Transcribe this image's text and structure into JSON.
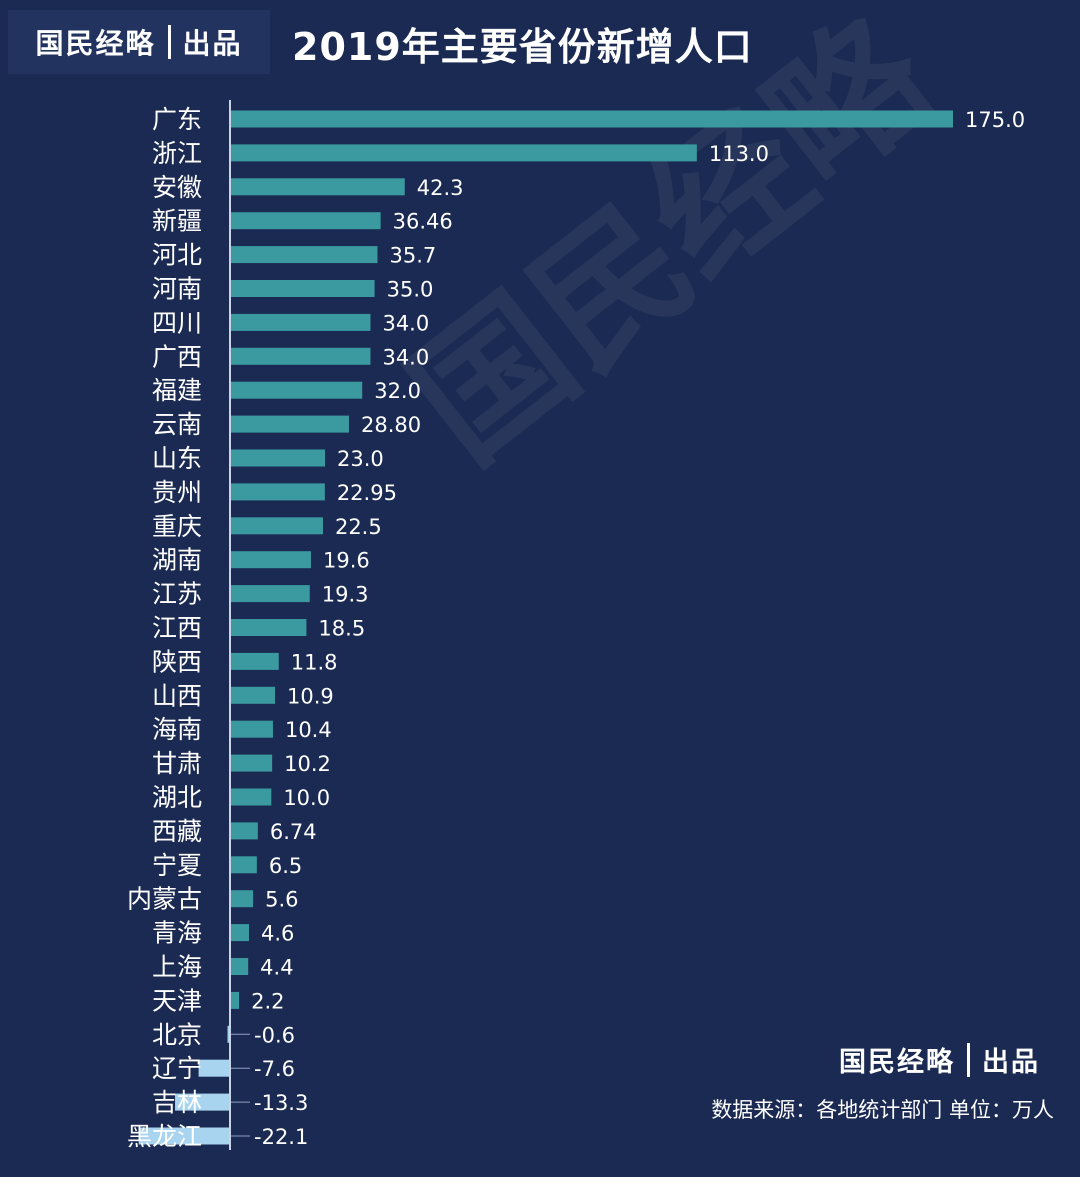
{
  "brand": {
    "name": "国民经略",
    "suffix": "出品"
  },
  "watermark": "国民经略",
  "footer": {
    "source": "数据来源：各地统计部门 单位：万人"
  },
  "colors": {
    "background": "#1b2a52",
    "positive_bar": "#3a9aa0",
    "negative_bar": "#a8d4f0",
    "text": "#ffffff"
  },
  "chart_data": {
    "type": "bar",
    "orientation": "horizontal",
    "title": "2019年主要省份新增人口",
    "xlabel": "",
    "ylabel": "",
    "grid": false,
    "xlim": [
      -22.1,
      175.0
    ],
    "categories": [
      "广东",
      "浙江",
      "安徽",
      "新疆",
      "河北",
      "河南",
      "四川",
      "广西",
      "福建",
      "云南",
      "山东",
      "贵州",
      "重庆",
      "湖南",
      "江苏",
      "江西",
      "陕西",
      "山西",
      "海南",
      "甘肃",
      "湖北",
      "西藏",
      "宁夏",
      "内蒙古",
      "青海",
      "上海",
      "天津",
      "北京",
      "辽宁",
      "吉林",
      "黑龙江"
    ],
    "values": [
      175.0,
      113.0,
      42.3,
      36.46,
      35.7,
      35.0,
      34.0,
      34.0,
      32.0,
      28.8,
      23.0,
      22.95,
      22.5,
      19.6,
      19.3,
      18.5,
      11.8,
      10.9,
      10.4,
      10.2,
      10.0,
      6.74,
      6.5,
      5.6,
      4.6,
      4.4,
      2.2,
      -0.6,
      -7.6,
      -13.3,
      -22.1
    ],
    "labels": [
      "175.0",
      "113.0",
      "42.3",
      "36.46",
      "35.7",
      "35.0",
      "34.0",
      "34.0",
      "32.0",
      "28.80",
      "23.0",
      "22.95",
      "22.5",
      "19.6",
      "19.3",
      "18.5",
      "11.8",
      "10.9",
      "10.4",
      "10.2",
      "10.0",
      "6.74",
      "6.5",
      "5.6",
      "4.6",
      "4.4",
      "2.2",
      "-0.6",
      "-7.6",
      "-13.3",
      "-22.1"
    ]
  }
}
